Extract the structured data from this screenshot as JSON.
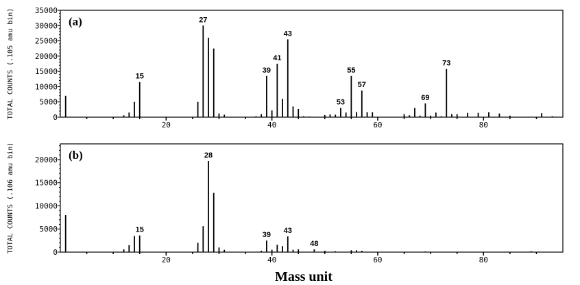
{
  "chart_data": [
    {
      "type": "bar",
      "panel_label": "(a)",
      "ylabel": "TOTAL COUNTS (.105 amu bin)",
      "xlabel": "",
      "xlim": [
        0,
        95
      ],
      "ylim": [
        0,
        35000
      ],
      "yticks": [
        0,
        5000,
        10000,
        15000,
        20000,
        25000,
        30000,
        35000
      ],
      "xticks": [
        20,
        40,
        60,
        80
      ],
      "x": [
        1,
        12,
        13,
        14,
        15,
        26,
        27,
        28,
        29,
        30,
        31,
        37,
        38,
        39,
        40,
        41,
        42,
        43,
        44,
        45,
        46,
        47,
        50,
        51,
        52,
        53,
        54,
        55,
        56,
        57,
        58,
        59,
        65,
        66,
        67,
        68,
        69,
        70,
        71,
        72,
        73,
        74,
        75,
        77,
        79,
        81,
        83,
        85,
        91,
        93
      ],
      "values": [
        7000,
        600,
        1500,
        5000,
        11500,
        5000,
        30000,
        26000,
        22500,
        1200,
        800,
        300,
        1000,
        13500,
        2200,
        17500,
        6000,
        25500,
        3500,
        2700,
        300,
        200,
        700,
        900,
        800,
        3000,
        1500,
        13500,
        1700,
        8700,
        1600,
        1600,
        1000,
        600,
        3000,
        500,
        4500,
        500,
        1500,
        300,
        15800,
        1000,
        1000,
        1400,
        1400,
        1600,
        1200,
        500,
        1300,
        300
      ],
      "peak_labels": [
        "15",
        "27",
        "39",
        "41",
        "43",
        "53",
        "55",
        "57",
        "69",
        "73"
      ]
    },
    {
      "type": "bar",
      "panel_label": "(b)",
      "ylabel": "TOTAL COUNTS (.106 amu bin)",
      "xlabel": "Mass unit",
      "xlim": [
        0,
        95
      ],
      "ylim": [
        0,
        23400
      ],
      "yticks": [
        0,
        5000,
        10000,
        15000,
        20000
      ],
      "xticks": [
        20,
        40,
        60,
        80
      ],
      "x": [
        1,
        12,
        13,
        14,
        15,
        26,
        27,
        28,
        29,
        30,
        31,
        38,
        39,
        40,
        41,
        42,
        43,
        44,
        45,
        48,
        50,
        52,
        55,
        56,
        57,
        69,
        89
      ],
      "values": [
        8000,
        600,
        1500,
        3500,
        3600,
        2000,
        5600,
        19700,
        12800,
        1000,
        500,
        300,
        2500,
        500,
        1600,
        1300,
        3400,
        500,
        600,
        600,
        300,
        200,
        400,
        400,
        300,
        150,
        200
      ],
      "peak_labels": [
        "15",
        "28",
        "39",
        "43",
        "48"
      ]
    }
  ]
}
